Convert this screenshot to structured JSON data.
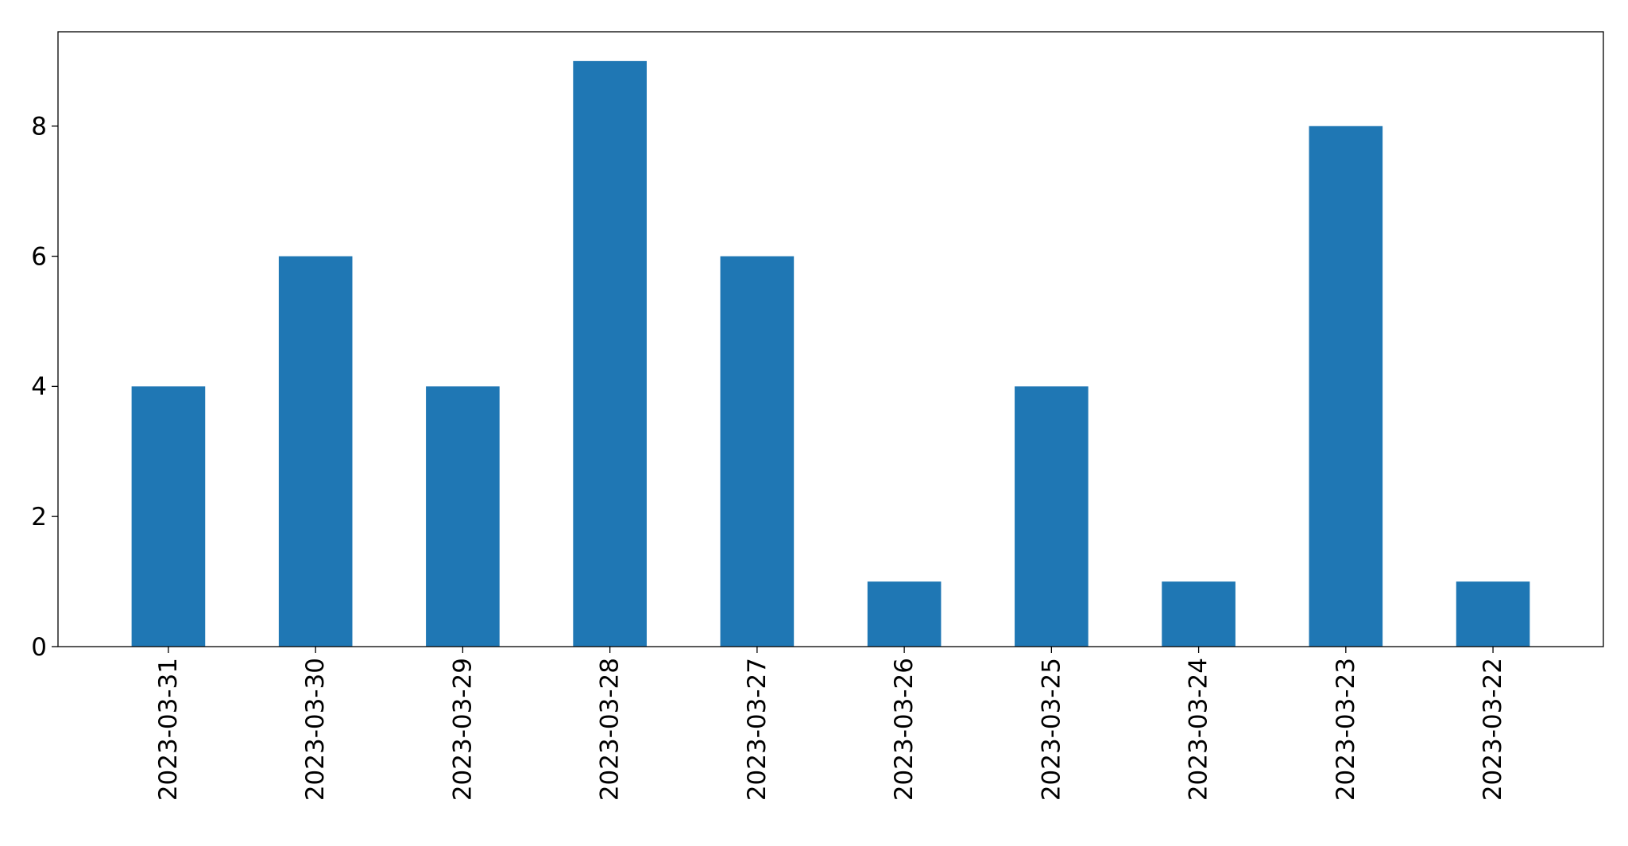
{
  "chart_data": {
    "type": "bar",
    "title": "",
    "xlabel": "",
    "ylabel": "",
    "categories": [
      "2023-03-31",
      "2023-03-30",
      "2023-03-29",
      "2023-03-28",
      "2023-03-27",
      "2023-03-26",
      "2023-03-25",
      "2023-03-24",
      "2023-03-23",
      "2023-03-22"
    ],
    "values": [
      4,
      6,
      4,
      9,
      6,
      1,
      4,
      1,
      8,
      1
    ],
    "ylim": [
      0,
      9.45
    ],
    "yticks": [
      0,
      2,
      4,
      6,
      8
    ],
    "ytick_labels": [
      "0",
      "2",
      "4",
      "6",
      "8"
    ],
    "bar_color": "#1f77b4",
    "grid": false,
    "legend": "none"
  }
}
